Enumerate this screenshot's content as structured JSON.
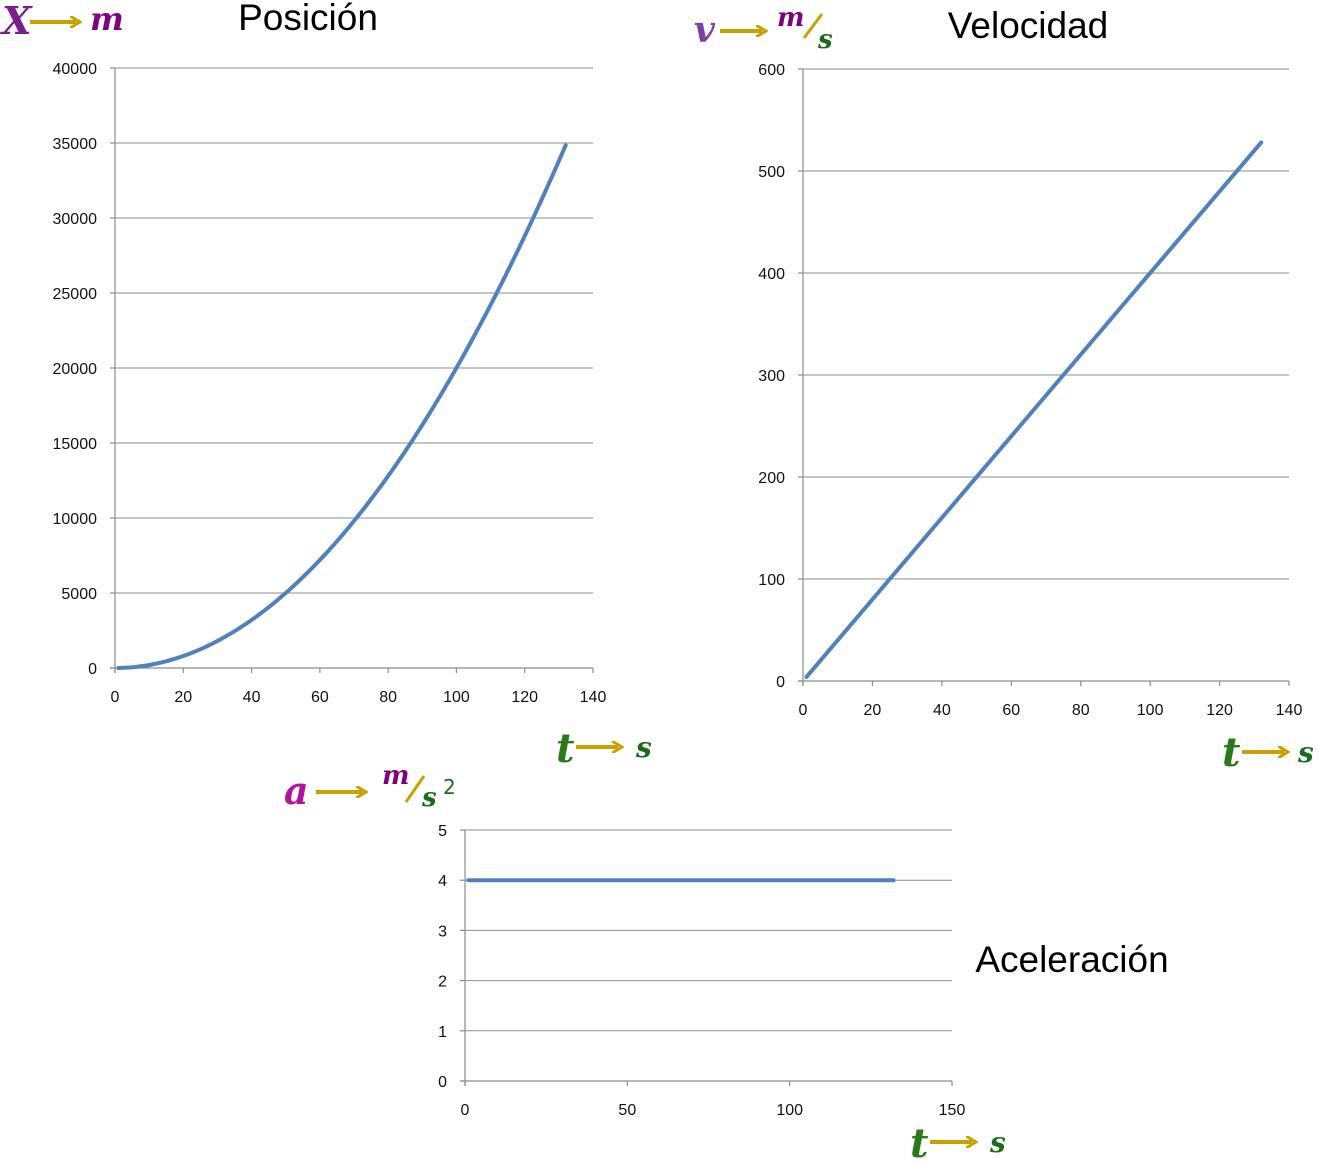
{
  "colors": {
    "series": "#4f81bd",
    "grid": "#8c8c8c",
    "quantity_x": "#7b1e8c",
    "quantity_v": "#7b3fa8",
    "quantity_a": "#b0149a",
    "unit_m": "#800080",
    "unit_s": "#1a6b1a",
    "time_t": "#2a7a1a",
    "arrow": "#c8a000"
  },
  "chart_data": [
    {
      "type": "line",
      "title": "Posición",
      "ylabel_symbol": "X",
      "ylabel_unit": "m",
      "xlabel_symbol": "t",
      "xlabel_unit": "s",
      "xlim": [
        0,
        140
      ],
      "ylim": [
        0,
        40000
      ],
      "xticks": [
        0,
        20,
        40,
        60,
        80,
        100,
        120,
        140
      ],
      "yticks": [
        0,
        5000,
        10000,
        15000,
        20000,
        25000,
        30000,
        35000,
        40000
      ],
      "grid": true,
      "series": [
        {
          "x": [
            1,
            10,
            20,
            30,
            40,
            50,
            60,
            70,
            80,
            90,
            100,
            110,
            120,
            132
          ],
          "values": [
            2,
            200,
            800,
            1800,
            3200,
            5000,
            7200,
            9800,
            12800,
            16200,
            20000,
            24200,
            28800,
            34848
          ]
        }
      ]
    },
    {
      "type": "line",
      "title": "Velocidad",
      "ylabel_symbol": "v",
      "ylabel_unit_num": "m",
      "ylabel_unit_den": "s",
      "xlabel_symbol": "t",
      "xlabel_unit": "s",
      "xlim": [
        0,
        140
      ],
      "ylim": [
        0,
        600
      ],
      "xticks": [
        0,
        20,
        40,
        60,
        80,
        100,
        120,
        140
      ],
      "yticks": [
        0,
        100,
        200,
        300,
        400,
        500,
        600
      ],
      "grid": true,
      "series": [
        {
          "x": [
            1,
            132
          ],
          "values": [
            4,
            528
          ]
        }
      ]
    },
    {
      "type": "line",
      "title": "Aceleración",
      "ylabel_symbol": "a",
      "ylabel_unit_num": "m",
      "ylabel_unit_den": "s",
      "ylabel_unit_exp": "2",
      "xlabel_symbol": "t",
      "xlabel_unit": "s",
      "xlim": [
        0,
        150
      ],
      "ylim": [
        0,
        5
      ],
      "xticks": [
        0,
        50,
        100,
        150
      ],
      "yticks": [
        0,
        1,
        2,
        3,
        4,
        5
      ],
      "grid": true,
      "series": [
        {
          "x": [
            1,
            132
          ],
          "values": [
            4,
            4
          ]
        }
      ]
    }
  ]
}
